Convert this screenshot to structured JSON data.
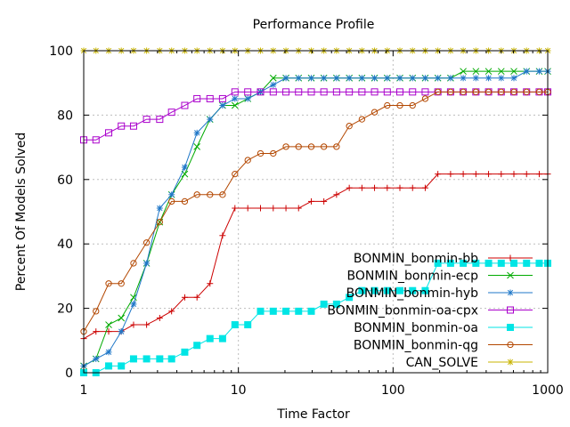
{
  "chart_data": {
    "type": "line",
    "title": "Performance Profile",
    "xlabel": "Time Factor",
    "ylabel": "Percent Of Models Solved",
    "xscale": "log",
    "xlim": [
      1,
      1000
    ],
    "ylim": [
      0,
      100
    ],
    "xticks": [
      1,
      10,
      100,
      1000
    ],
    "xtick_labels": [
      "1",
      "10",
      "100",
      "1000"
    ],
    "yticks": [
      0,
      20,
      40,
      60,
      80,
      100
    ],
    "ytick_labels": [
      "0",
      "20",
      "40",
      "60",
      "80",
      "100"
    ],
    "grid": true,
    "legend_position": "bottom-right",
    "x": [
      1,
      1.2,
      1.45,
      1.75,
      2.1,
      2.55,
      3.1,
      3.7,
      4.5,
      5.4,
      6.55,
      7.9,
      9.5,
      11.5,
      13.9,
      16.8,
      20.3,
      24.5,
      29.6,
      35.7,
      43.1,
      52.1,
      62.9,
      75.9,
      91.7,
      110.7,
      133.7,
      161.4,
      194.9,
      235.4,
      284.2,
      343.2,
      414.4,
      500.4,
      604.3,
      729.7,
      881.1,
      1000
    ],
    "series": [
      {
        "name": "BONMIN_bonmin-bb",
        "color": "#cc0000",
        "marker": "plus",
        "values": [
          10.6,
          12.8,
          12.8,
          12.8,
          14.9,
          14.9,
          17.0,
          19.1,
          23.4,
          23.4,
          27.7,
          42.6,
          51.1,
          51.1,
          51.1,
          51.1,
          51.1,
          51.1,
          53.2,
          53.2,
          55.3,
          57.4,
          57.4,
          57.4,
          57.4,
          57.4,
          57.4,
          57.4,
          61.7,
          61.7,
          61.7,
          61.7,
          61.7,
          61.7,
          61.7,
          61.7,
          61.7,
          61.7
        ]
      },
      {
        "name": "BONMIN_bonmin-ecp",
        "color": "#00aa00",
        "marker": "cross",
        "values": [
          2.1,
          4.3,
          14.9,
          17.0,
          23.4,
          34.0,
          46.8,
          55.3,
          61.7,
          70.2,
          78.7,
          83.0,
          83.0,
          85.1,
          87.2,
          91.5,
          91.5,
          91.5,
          91.5,
          91.5,
          91.5,
          91.5,
          91.5,
          91.5,
          91.5,
          91.5,
          91.5,
          91.5,
          91.5,
          91.5,
          93.6,
          93.6,
          93.6,
          93.6,
          93.6,
          93.6,
          93.6,
          93.6
        ]
      },
      {
        "name": "BONMIN_bonmin-hyb",
        "color": "#1f77c8",
        "marker": "star",
        "values": [
          2.1,
          4.3,
          6.4,
          12.8,
          21.3,
          34.0,
          51.1,
          55.3,
          63.8,
          74.5,
          78.7,
          83.0,
          85.1,
          85.1,
          87.2,
          89.4,
          91.5,
          91.5,
          91.5,
          91.5,
          91.5,
          91.5,
          91.5,
          91.5,
          91.5,
          91.5,
          91.5,
          91.5,
          91.5,
          91.5,
          91.5,
          91.5,
          91.5,
          91.5,
          91.5,
          93.6,
          93.6,
          93.6
        ]
      },
      {
        "name": "BONMIN_bonmin-oa-cpx",
        "color": "#aa00cc",
        "marker": "square-open",
        "values": [
          72.3,
          72.3,
          74.5,
          76.6,
          76.6,
          78.7,
          78.7,
          80.9,
          83.0,
          85.1,
          85.1,
          85.1,
          87.2,
          87.2,
          87.2,
          87.2,
          87.2,
          87.2,
          87.2,
          87.2,
          87.2,
          87.2,
          87.2,
          87.2,
          87.2,
          87.2,
          87.2,
          87.2,
          87.2,
          87.2,
          87.2,
          87.2,
          87.2,
          87.2,
          87.2,
          87.2,
          87.2,
          87.2
        ]
      },
      {
        "name": "BONMIN_bonmin-oa",
        "color": "#00e5e5",
        "marker": "square-filled",
        "values": [
          0,
          0,
          2.1,
          2.1,
          4.3,
          4.3,
          4.3,
          4.3,
          6.4,
          8.5,
          10.6,
          10.6,
          14.9,
          14.9,
          19.1,
          19.1,
          19.1,
          19.1,
          19.1,
          21.3,
          21.3,
          23.4,
          25.5,
          25.5,
          25.5,
          25.5,
          25.5,
          25.5,
          34.0,
          34.0,
          34.0,
          34.0,
          34.0,
          34.0,
          34.0,
          34.0,
          34.0,
          34.0
        ]
      },
      {
        "name": "BONMIN_bonmin-qg",
        "color": "#b34700",
        "marker": "circle-open",
        "values": [
          12.8,
          19.1,
          27.7,
          27.7,
          34.0,
          40.4,
          46.8,
          53.2,
          53.2,
          55.3,
          55.3,
          55.3,
          61.7,
          66.0,
          68.1,
          68.1,
          70.2,
          70.2,
          70.2,
          70.2,
          70.2,
          76.6,
          78.7,
          80.9,
          83.0,
          83.0,
          83.0,
          85.1,
          87.2,
          87.2,
          87.2,
          87.2,
          87.2,
          87.2,
          87.2,
          87.2,
          87.2,
          87.2
        ]
      },
      {
        "name": "CAN_SOLVE",
        "color": "#c8b400",
        "marker": "star",
        "values": [
          100,
          100,
          100,
          100,
          100,
          100,
          100,
          100,
          100,
          100,
          100,
          100,
          100,
          100,
          100,
          100,
          100,
          100,
          100,
          100,
          100,
          100,
          100,
          100,
          100,
          100,
          100,
          100,
          100,
          100,
          100,
          100,
          100,
          100,
          100,
          100,
          100,
          100
        ]
      }
    ]
  }
}
